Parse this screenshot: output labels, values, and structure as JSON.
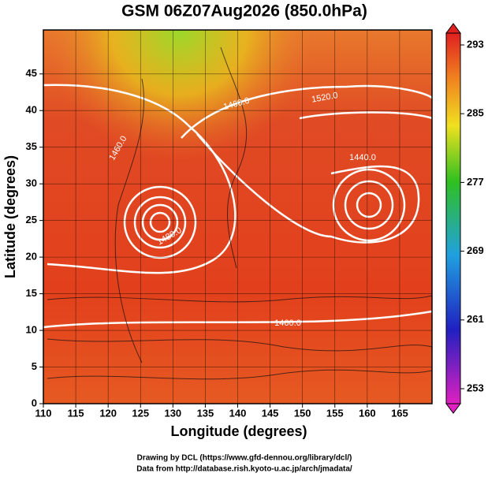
{
  "map": {
    "title": "GSM 06Z07Aug2026 (850.0hPa)",
    "xlabel": "Longitude (degrees)",
    "ylabel": "Latitude  (degrees)",
    "xlim": [
      110,
      170
    ],
    "ylim": [
      0,
      51
    ],
    "xticks": [
      110,
      115,
      120,
      125,
      130,
      135,
      140,
      145,
      150,
      155,
      160,
      165
    ],
    "yticks": [
      0,
      5,
      10,
      15,
      20,
      25,
      30,
      35,
      40,
      45
    ],
    "grid": true,
    "colorbar": {
      "lim": [
        253,
        293
      ],
      "ticks": [
        253,
        261,
        269,
        277,
        285,
        293
      ]
    },
    "contour_labels": [
      "1460.0",
      "1520.0",
      "1440.0",
      "1460.0",
      "1460.0",
      "1480.0"
    ],
    "credits": [
      "Drawing by DCL (https://www.gfd-dennou.org/library/dcl/)",
      "Data from http://database.rish.kyoto-u.ac.jp/arch/jmadata/"
    ]
  }
}
